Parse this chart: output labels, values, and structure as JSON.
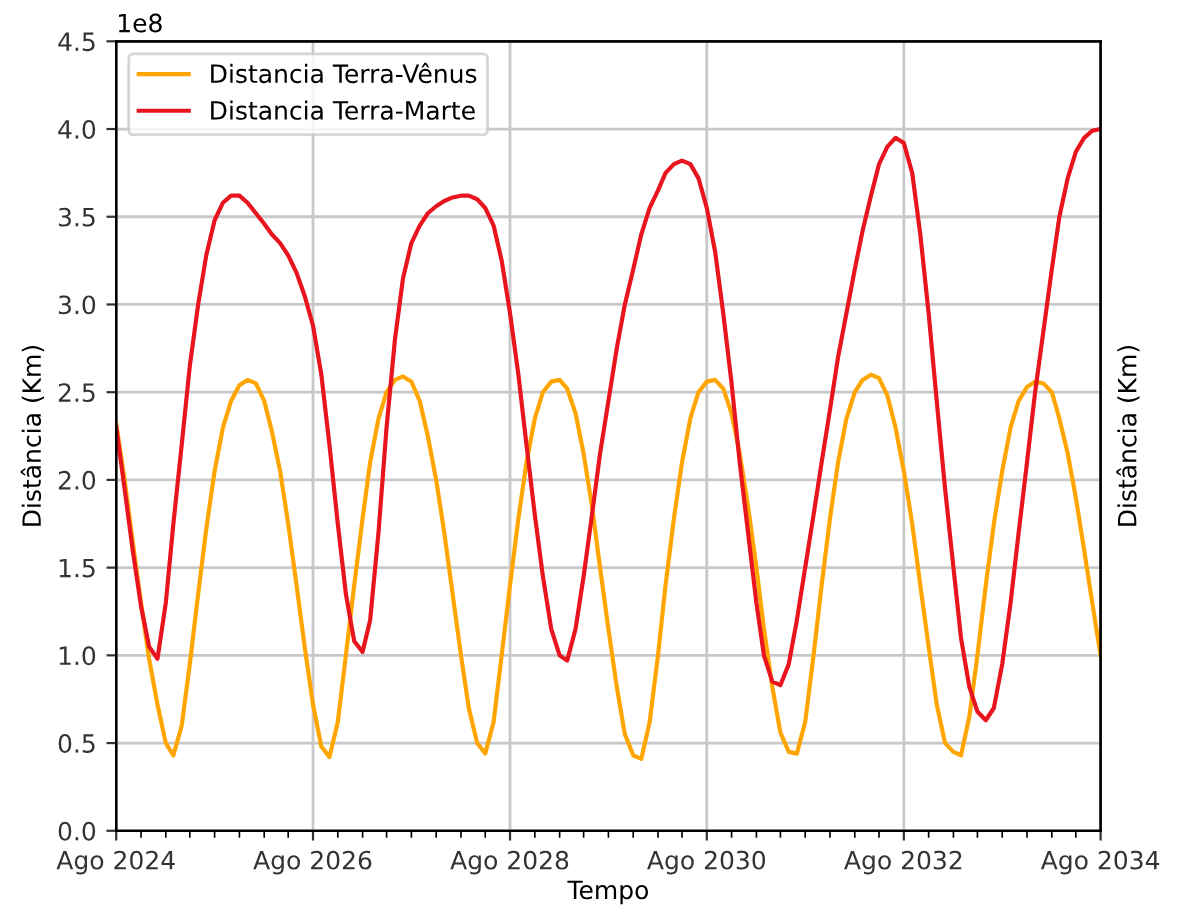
{
  "chart_data": {
    "type": "line",
    "xlabel": "Tempo",
    "ylabel": "Distância (Km)",
    "y2label": "Distância (Km)",
    "annotations": [
      "1e8"
    ],
    "x": [
      "2024-08",
      "2024-09",
      "2024-10",
      "2024-11",
      "2024-12",
      "2025-01",
      "2025-02",
      "2025-03",
      "2025-04",
      "2025-05",
      "2025-06",
      "2025-07",
      "2025-08",
      "2025-09",
      "2025-10",
      "2025-11",
      "2025-12",
      "2026-01",
      "2026-02",
      "2026-03",
      "2026-04",
      "2026-05",
      "2026-06",
      "2026-07",
      "2026-08",
      "2026-09",
      "2026-10",
      "2026-11",
      "2026-12",
      "2027-01",
      "2027-02",
      "2027-03",
      "2027-04",
      "2027-05",
      "2027-06",
      "2027-07",
      "2027-08",
      "2027-09",
      "2027-10",
      "2027-11",
      "2027-12",
      "2028-01",
      "2028-02",
      "2028-03",
      "2028-04",
      "2028-05",
      "2028-06",
      "2028-07",
      "2028-08",
      "2028-09",
      "2028-10",
      "2028-11",
      "2028-12",
      "2029-01",
      "2029-02",
      "2029-03",
      "2029-04",
      "2029-05",
      "2029-06",
      "2029-07",
      "2029-08",
      "2029-09",
      "2029-10",
      "2029-11",
      "2029-12",
      "2030-01",
      "2030-02",
      "2030-03",
      "2030-04",
      "2030-05",
      "2030-06",
      "2030-07",
      "2030-08",
      "2030-09",
      "2030-10",
      "2030-11",
      "2030-12",
      "2031-01",
      "2031-02",
      "2031-03",
      "2031-04",
      "2031-05",
      "2031-06",
      "2031-07",
      "2031-08",
      "2031-09",
      "2031-10",
      "2031-11",
      "2031-12",
      "2032-01",
      "2032-02",
      "2032-03",
      "2032-04",
      "2032-05",
      "2032-06",
      "2032-07",
      "2032-08",
      "2032-09",
      "2032-10",
      "2032-11",
      "2032-12",
      "2033-01",
      "2033-02",
      "2033-03",
      "2033-04",
      "2033-05",
      "2033-06",
      "2033-07",
      "2033-08",
      "2033-09",
      "2033-10",
      "2033-11",
      "2033-12",
      "2034-01",
      "2034-02",
      "2034-03",
      "2034-04",
      "2034-05",
      "2034-06",
      "2034-07",
      "2034-08"
    ],
    "series": [
      {
        "name": "Distancia Terra-Vênus",
        "color": "#ffa500",
        "values": [
          2.32,
          2.0,
          1.65,
          1.3,
          0.98,
          0.72,
          0.5,
          0.43,
          0.6,
          0.95,
          1.35,
          1.72,
          2.05,
          2.3,
          2.45,
          2.54,
          2.57,
          2.55,
          2.45,
          2.28,
          2.05,
          1.75,
          1.4,
          1.05,
          0.72,
          0.48,
          0.42,
          0.62,
          1.0,
          1.4,
          1.78,
          2.1,
          2.35,
          2.5,
          2.57,
          2.59,
          2.56,
          2.45,
          2.25,
          2.0,
          1.7,
          1.35,
          1.0,
          0.7,
          0.5,
          0.44,
          0.62,
          1.0,
          1.4,
          1.78,
          2.1,
          2.35,
          2.5,
          2.56,
          2.57,
          2.52,
          2.38,
          2.15,
          1.85,
          1.5,
          1.15,
          0.82,
          0.55,
          0.43,
          0.41,
          0.62,
          1.0,
          1.4,
          1.78,
          2.1,
          2.35,
          2.5,
          2.56,
          2.57,
          2.52,
          2.38,
          2.15,
          1.85,
          1.5,
          1.15,
          0.82,
          0.56,
          0.45,
          0.44,
          0.62,
          1.0,
          1.4,
          1.78,
          2.1,
          2.35,
          2.5,
          2.57,
          2.6,
          2.58,
          2.48,
          2.3,
          2.05,
          1.75,
          1.4,
          1.05,
          0.72,
          0.5,
          0.45,
          0.43,
          0.65,
          1.0,
          1.4,
          1.75,
          2.05,
          2.3,
          2.45,
          2.53,
          2.56,
          2.55,
          2.5,
          2.35,
          2.15,
          1.9,
          1.6,
          1.3,
          1.0
        ]
      },
      {
        "name": "Distancia Terra-Marte",
        "color": "#e8141e",
        "values": [
          2.3,
          1.95,
          1.6,
          1.28,
          1.05,
          0.98,
          1.3,
          1.75,
          2.2,
          2.65,
          3.0,
          3.28,
          3.48,
          3.58,
          3.62,
          3.62,
          3.58,
          3.52,
          3.46,
          3.4,
          3.35,
          3.28,
          3.18,
          3.05,
          2.88,
          2.6,
          2.2,
          1.75,
          1.35,
          1.08,
          1.02,
          1.2,
          1.7,
          2.3,
          2.8,
          3.15,
          3.35,
          3.45,
          3.52,
          3.56,
          3.59,
          3.61,
          3.62,
          3.62,
          3.6,
          3.55,
          3.45,
          3.25,
          2.95,
          2.6,
          2.2,
          1.8,
          1.45,
          1.15,
          1.0,
          0.97,
          1.15,
          1.45,
          1.8,
          2.15,
          2.45,
          2.75,
          3.0,
          3.2,
          3.4,
          3.55,
          3.65,
          3.75,
          3.8,
          3.82,
          3.8,
          3.72,
          3.55,
          3.3,
          2.95,
          2.55,
          2.1,
          1.7,
          1.3,
          1.0,
          0.85,
          0.83,
          0.95,
          1.2,
          1.5,
          1.8,
          2.1,
          2.4,
          2.7,
          2.95,
          3.2,
          3.42,
          3.62,
          3.8,
          3.9,
          3.95,
          3.92,
          3.75,
          3.4,
          2.95,
          2.45,
          1.95,
          1.5,
          1.1,
          0.82,
          0.68,
          0.63,
          0.7,
          0.95,
          1.3,
          1.7,
          2.1,
          2.5,
          2.85,
          3.2,
          3.5,
          3.72,
          3.87,
          3.95,
          3.99,
          4.0
        ]
      }
    ],
    "xlim": [
      "2024-08",
      "2034-08"
    ],
    "xticks": [
      {
        "value": "2024-08",
        "label": "Ago 2024"
      },
      {
        "value": "2026-08",
        "label": "Ago 2026"
      },
      {
        "value": "2028-08",
        "label": "Ago 2028"
      },
      {
        "value": "2030-08",
        "label": "Ago 2030"
      },
      {
        "value": "2032-08",
        "label": "Ago 2032"
      },
      {
        "value": "2034-08",
        "label": "Ago 2034"
      }
    ],
    "ylim": [
      0,
      4.5
    ],
    "yticks": [
      {
        "value": 0,
        "label": "0.0"
      },
      {
        "value": 0.5,
        "label": "0.5"
      },
      {
        "value": 1,
        "label": "1.0"
      },
      {
        "value": 1.5,
        "label": "1.5"
      },
      {
        "value": 2,
        "label": "2.0"
      },
      {
        "value": 2.5,
        "label": "2.5"
      },
      {
        "value": 3,
        "label": "3.0"
      },
      {
        "value": 3.5,
        "label": "3.5"
      },
      {
        "value": 4,
        "label": "4.0"
      },
      {
        "value": 4.5,
        "label": "4.5"
      }
    ],
    "grid": true,
    "legend": "top left"
  }
}
